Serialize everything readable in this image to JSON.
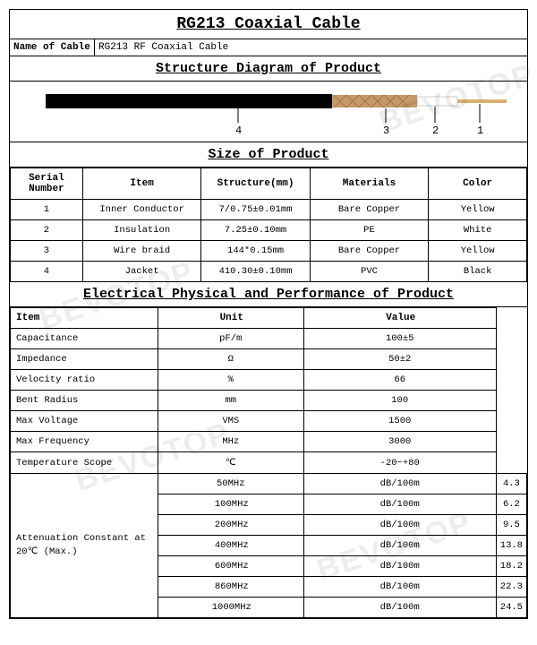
{
  "title": "RG213 Coaxial Cable",
  "name_label": "Name of Cable",
  "name_value": "RG213 RF Coaxial Cable",
  "structure_header": "Structure Diagram of Product",
  "diagram": {
    "jacket_color": "#000000",
    "braid_color": "#c89868",
    "insulation_color": "#ffffff",
    "conductor_color": "#d8b070",
    "labels": [
      "4",
      "3",
      "2",
      "1"
    ]
  },
  "size_header": "Size of Product",
  "size_columns": [
    "Serial Number",
    "Item",
    "Structure(mm)",
    "Materials",
    "Color"
  ],
  "size_rows": [
    [
      "1",
      "Inner Conductor",
      "7/0.75±0.01mm",
      "Bare Copper",
      "Yellow"
    ],
    [
      "2",
      "Insulation",
      "7.25±0.10mm",
      "PE",
      "White"
    ],
    [
      "3",
      "Wire braid",
      "144*0.15mm",
      "Bare Copper",
      "Yellow"
    ],
    [
      "4",
      "Jacket",
      "410.30±0.10mm",
      "PVC",
      "Black"
    ]
  ],
  "elec_header": "Electrical Physical and Performance of Product",
  "elec_columns": [
    "Item",
    "Unit",
    "Value"
  ],
  "elec_rows": [
    [
      "Capacitance",
      "pF/m",
      "100±5"
    ],
    [
      "Impedance",
      "Ω",
      "50±2"
    ],
    [
      "Velocity ratio",
      "%",
      "66"
    ],
    [
      "Bent Radius",
      "mm",
      "100"
    ],
    [
      "Max Voltage",
      "VMS",
      "1500"
    ],
    [
      "Max Frequency",
      "MHz",
      "3000"
    ],
    [
      "Temperature Scope",
      "℃",
      "-20~+80"
    ]
  ],
  "atten_label": "Attenuation Constant at 20℃ (Max.)",
  "atten_rows": [
    [
      "50MHz",
      "dB/100m",
      "4.3"
    ],
    [
      "100MHz",
      "dB/100m",
      "6.2"
    ],
    [
      "200MHz",
      "dB/100m",
      "9.5"
    ],
    [
      "400MHz",
      "dB/100m",
      "13.8"
    ],
    [
      "600MHz",
      "dB/100m",
      "18.2"
    ],
    [
      "860MHz",
      "dB/100m",
      "22.3"
    ],
    [
      "1000MHz",
      "dB/100m",
      "24.5"
    ]
  ],
  "watermark_text": "BEVOTOP",
  "watermark_color": "rgba(0,0,0,0.07)"
}
